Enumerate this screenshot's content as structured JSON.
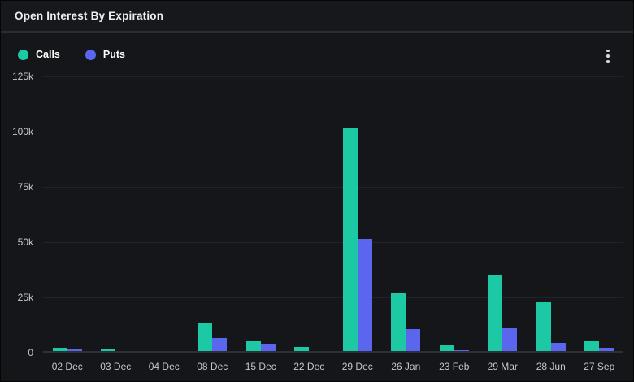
{
  "header": {
    "title": "Open Interest By Expiration"
  },
  "legend": [
    {
      "label": "Calls",
      "color": "#1dc8a5"
    },
    {
      "label": "Puts",
      "color": "#5b66ee"
    }
  ],
  "menu": {
    "icon": "kebab-menu-icon"
  },
  "colors": {
    "calls": "#1dc8a5",
    "puts": "#5b66ee",
    "background": "#141619",
    "gridline": "#212327",
    "axis_text": "#c5c8cb"
  },
  "chart_data": {
    "type": "bar",
    "title": "Open Interest By Expiration",
    "categories": [
      "02 Dec",
      "03 Dec",
      "04 Dec",
      "08 Dec",
      "15 Dec",
      "22 Dec",
      "29 Dec",
      "26 Jan",
      "23 Feb",
      "29 Mar",
      "28 Jun",
      "27 Sep"
    ],
    "series": [
      {
        "name": "Calls",
        "color": "#1dc8a5",
        "values": [
          1500,
          600,
          0,
          12500,
          4800,
          1800,
          101000,
          26000,
          2700,
          34500,
          22500,
          4400
        ]
      },
      {
        "name": "Puts",
        "color": "#5b66ee",
        "values": [
          1000,
          0,
          0,
          6000,
          3200,
          0,
          50800,
          9800,
          500,
          10800,
          3800,
          1500
        ]
      }
    ],
    "xlabel": "",
    "ylabel": "",
    "ylim": [
      0,
      125000
    ],
    "yticks": [
      {
        "value": 125000,
        "label": "125k"
      },
      {
        "value": 100000,
        "label": "100k"
      },
      {
        "value": 75000,
        "label": "75k"
      },
      {
        "value": 50000,
        "label": "50k"
      },
      {
        "value": 25000,
        "label": "25k"
      },
      {
        "value": 0,
        "label": "0"
      }
    ],
    "grid": true,
    "legend_position": "top-left"
  }
}
